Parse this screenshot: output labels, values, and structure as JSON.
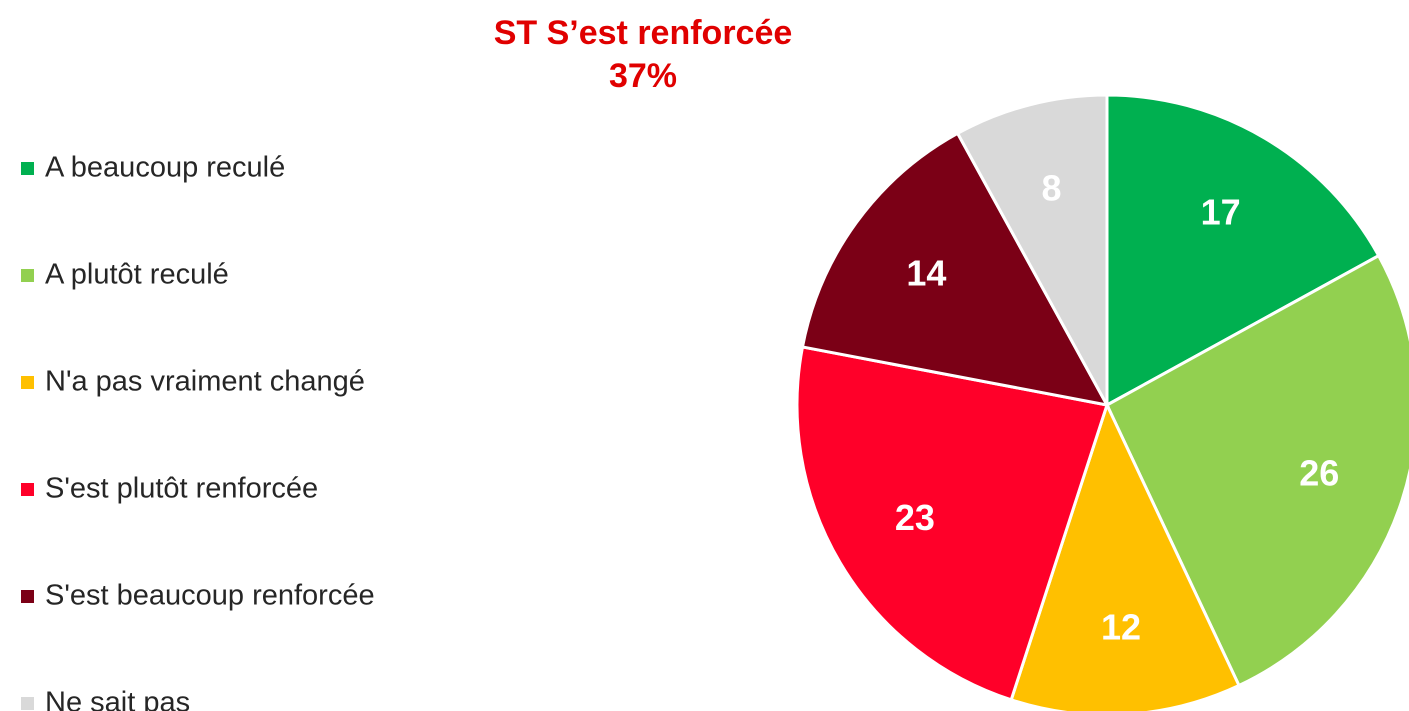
{
  "chart_data": {
    "type": "pie",
    "title": "ST S’est renforcée",
    "subtitle": "37%",
    "categories": [
      "A beaucoup reculé",
      "A plutôt reculé",
      "N'a pas vraiment changé",
      "S'est plutôt renforcée",
      "S'est beaucoup renforcée",
      "Ne sait pas"
    ],
    "values": [
      17,
      26,
      12,
      23,
      14,
      8
    ],
    "colors": [
      "#00b050",
      "#92d050",
      "#ffc000",
      "#ff0029",
      "#7b0016",
      "#d9d9d9"
    ],
    "legend": "left"
  }
}
